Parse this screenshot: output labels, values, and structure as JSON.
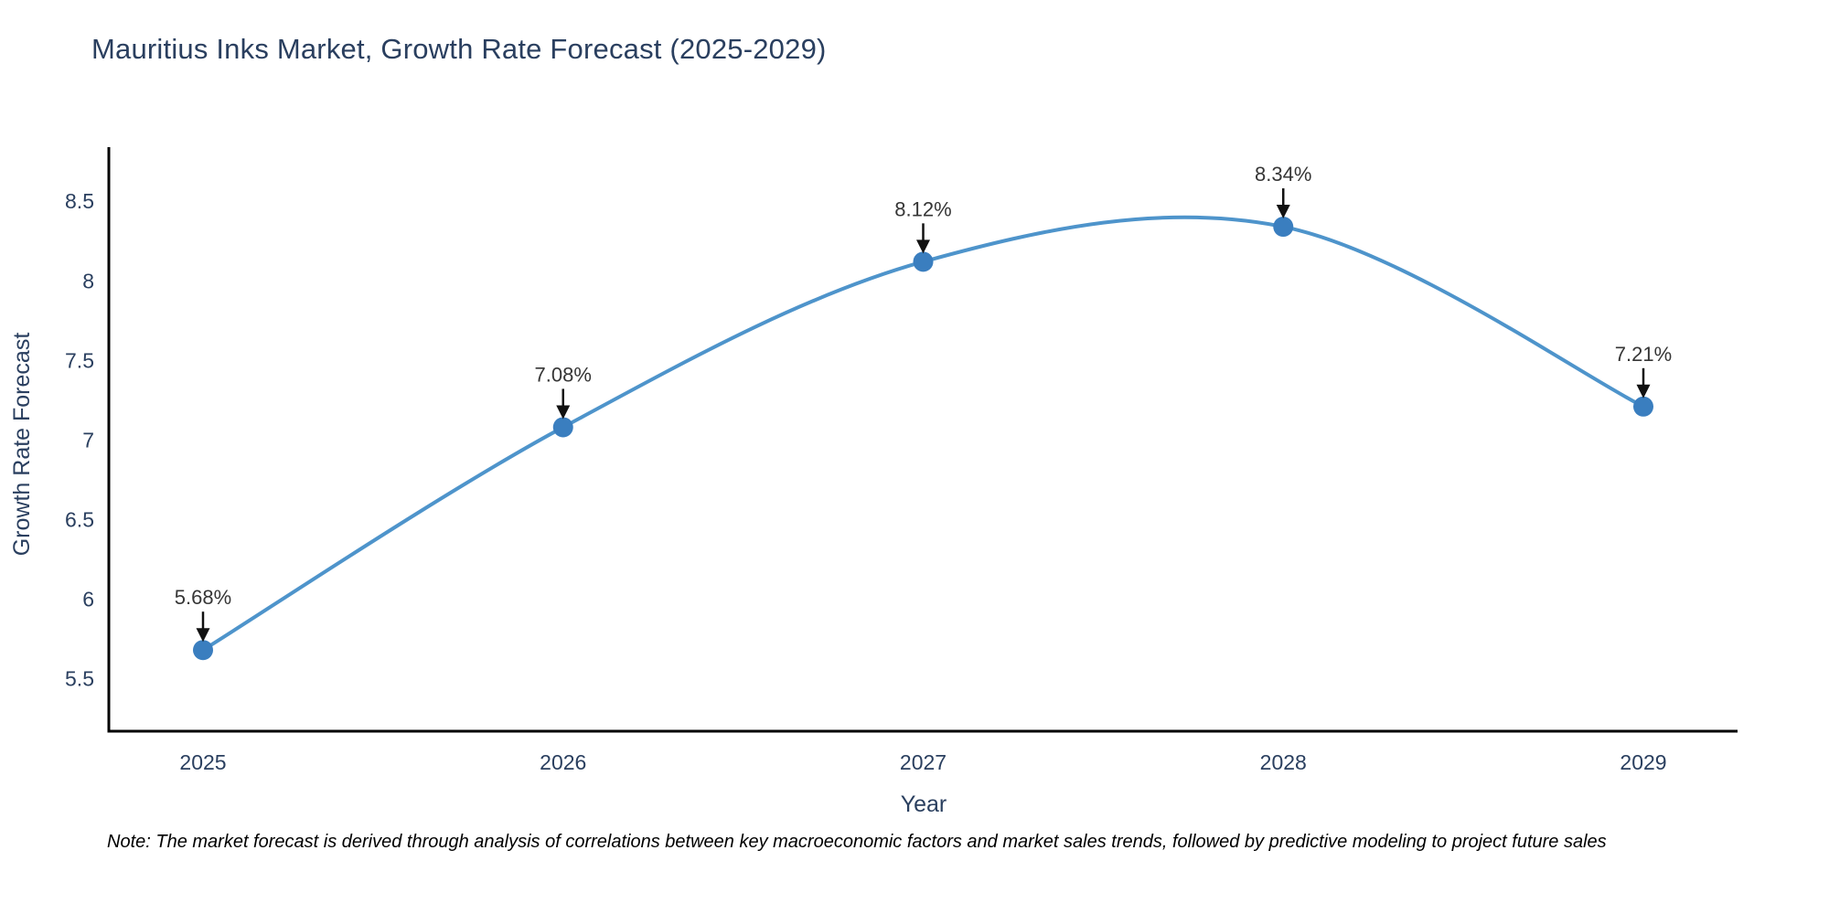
{
  "chart_data": {
    "type": "line",
    "title": "Mauritius Inks Market, Growth Rate Forecast (2025-2029)",
    "xlabel": "Year",
    "ylabel": "Growth Rate Forecast",
    "categories": [
      "2025",
      "2026",
      "2027",
      "2028",
      "2029"
    ],
    "values": [
      5.68,
      7.08,
      8.12,
      8.34,
      7.21
    ],
    "point_labels": [
      "5.68%",
      "7.08%",
      "8.12%",
      "8.34%",
      "7.21%"
    ],
    "y_ticks": [
      5.5,
      6,
      6.5,
      7,
      7.5,
      8,
      8.5
    ],
    "y_tick_labels": [
      "5.5",
      "6",
      "6.5",
      "7",
      "7.5",
      "8",
      "8.5"
    ],
    "ylim": [
      5.17,
      8.84
    ],
    "line_shape": "spline",
    "grid": false,
    "legend": false,
    "marker_style": "circle",
    "annotation_arrows": true,
    "colors": {
      "line": "#4e94cb",
      "marker": "#3a7ebf",
      "axis": "#000000",
      "title_text": "#2a3f5f",
      "tick_text": "#2a3f5f",
      "axis_title_text": "#2a3f5f",
      "annotation_text": "#363636",
      "arrow": "#111111",
      "background": "#ffffff"
    },
    "note": "Note: The market forecast is derived through analysis of correlations between key macroeconomic factors and market sales trends, followed by predictive modeling to project future sales"
  }
}
